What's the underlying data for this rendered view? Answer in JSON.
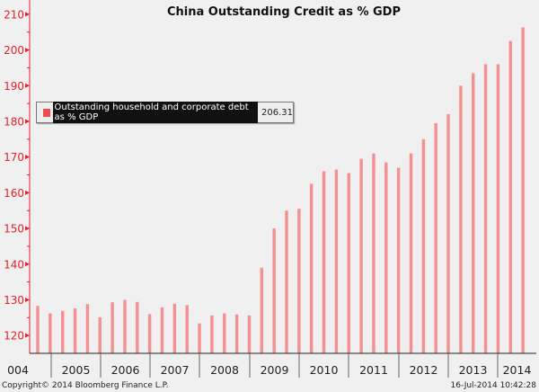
{
  "chart_data": {
    "type": "bar",
    "title": "China Outstanding Credit as % GDP",
    "xlabel": "",
    "ylabel": "",
    "ylim": [
      115,
      214
    ],
    "yticks": [
      120,
      130,
      140,
      150,
      160,
      170,
      180,
      190,
      200,
      210
    ],
    "year_labels": [
      "004",
      "2005",
      "2006",
      "2007",
      "2008",
      "2009",
      "2010",
      "2011",
      "2012",
      "2013",
      "2014"
    ],
    "grid": false,
    "legend_placement": "top-left",
    "series": [
      {
        "name": "Outstanding household and corporate debt as % GDP",
        "last_value": "206.31",
        "color": "#f59090",
        "values": [
          128.3,
          126.2,
          126.9,
          127.6,
          128.8,
          125.1,
          129.3,
          130.0,
          129.4,
          126.0,
          127.9,
          128.9,
          128.5,
          123.4,
          125.6,
          126.2,
          125.9,
          125.6,
          139.0,
          150.0,
          155.0,
          155.5,
          162.5,
          166.0,
          166.5,
          165.5,
          169.5,
          171.0,
          168.5,
          167.0,
          171.0,
          175.0,
          179.5,
          182.0,
          190.0,
          193.5,
          196.0,
          196.0,
          202.5,
          206.31
        ]
      }
    ]
  },
  "footer": {
    "copyright": "Copyright© 2014 Bloomberg Finance L.P.",
    "timestamp": "16-Jul-2014 10:42:28"
  }
}
